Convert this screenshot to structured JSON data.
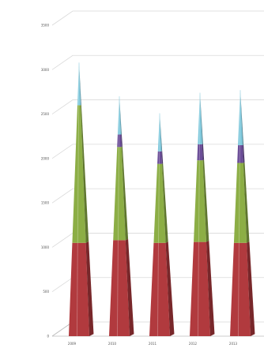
{
  "chart_data": {
    "type": "bar",
    "subtype": "stacked-3d-pyramid",
    "title": "",
    "xlabel": "",
    "ylabel": "",
    "categories": [
      "2009",
      "2010",
      "2011",
      "2012",
      "2013"
    ],
    "series": [
      {
        "color": "#b13a3e",
        "values": [
          1050,
          1080,
          1050,
          1060,
          1050
        ]
      },
      {
        "color": "#8cae45",
        "values": [
          1550,
          1050,
          890,
          920,
          900
        ]
      },
      {
        "color": "#6b4d97",
        "values": [
          0,
          140,
          140,
          180,
          200
        ]
      },
      {
        "color": "#7ec8dc",
        "values": [
          480,
          430,
          430,
          580,
          620
        ]
      }
    ],
    "y_ticks": [
      0,
      500,
      1000,
      1500,
      2000,
      2500,
      3000,
      3500
    ],
    "ylim": [
      0,
      3500
    ],
    "grid": true,
    "legend": "none"
  }
}
